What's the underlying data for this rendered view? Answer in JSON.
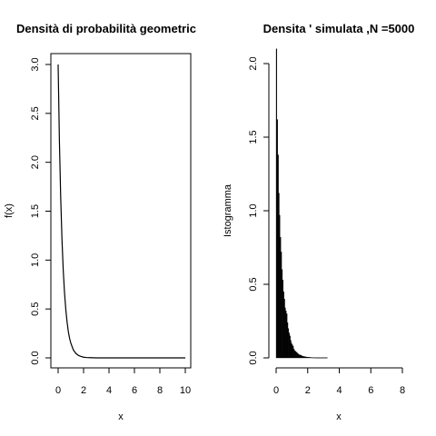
{
  "chart_data": [
    {
      "type": "line",
      "title": "Densità di probabilità geometric",
      "xlabel": "x",
      "ylabel": "f(x)",
      "xlim": [
        0,
        10
      ],
      "ylim": [
        0,
        3
      ],
      "x_ticks": [
        "0",
        "2",
        "4",
        "6",
        "8",
        "10"
      ],
      "y_ticks": [
        "0.0",
        "0.5",
        "1.0",
        "1.5",
        "2.0",
        "2.5",
        "3.0"
      ],
      "series": [
        {
          "x": [
            0,
            0.1,
            0.2,
            0.3,
            0.4,
            0.5,
            0.6,
            0.7,
            0.8,
            0.9,
            1.0,
            1.2,
            1.4,
            1.6,
            1.8,
            2.0,
            2.2,
            2.5,
            3,
            4,
            5,
            6,
            7,
            8,
            9,
            10
          ],
          "values": [
            3.0,
            2.22,
            1.65,
            1.22,
            0.9,
            0.67,
            0.5,
            0.37,
            0.27,
            0.2,
            0.15,
            0.08,
            0.045,
            0.025,
            0.014,
            0.007,
            0.004,
            0.002,
            0.0,
            0.0,
            0.0,
            0.0,
            0.0,
            0.0,
            0.0,
            0.0
          ]
        }
      ],
      "grid": false,
      "frame": true
    },
    {
      "type": "bar",
      "title": "Densita '  simulata ,N =5000",
      "xlabel": "x",
      "ylabel": "Istogramma",
      "xlim": [
        0,
        8
      ],
      "ylim": [
        0,
        2.1
      ],
      "x_ticks": [
        "0",
        "2",
        "4",
        "6",
        "8"
      ],
      "y_ticks": [
        "0.0",
        "0.5",
        "1.0",
        "1.5",
        "2.0"
      ],
      "bin_width": 0.05,
      "bin_start": 0,
      "values": [
        2.1,
        1.62,
        1.38,
        1.12,
        0.97,
        0.82,
        0.72,
        0.6,
        0.53,
        0.45,
        0.4,
        0.34,
        0.32,
        0.3,
        0.24,
        0.2,
        0.17,
        0.15,
        0.12,
        0.1,
        0.09,
        0.08,
        0.06,
        0.05,
        0.045,
        0.04,
        0.035,
        0.03,
        0.025,
        0.02,
        0.02,
        0.018,
        0.015,
        0.012,
        0.01,
        0.01,
        0.008,
        0.007,
        0.006,
        0.005,
        0.005,
        0.004,
        0.004,
        0.003,
        0.003,
        0.002,
        0.002,
        0.002,
        0.002,
        0.001,
        0.001,
        0.001,
        0.001,
        0.001,
        0.001,
        0.001,
        0.001,
        0.001,
        0.001,
        0.001,
        0.001,
        0.001,
        0.001,
        0.001,
        0.001
      ],
      "grid": false,
      "frame": false
    }
  ]
}
